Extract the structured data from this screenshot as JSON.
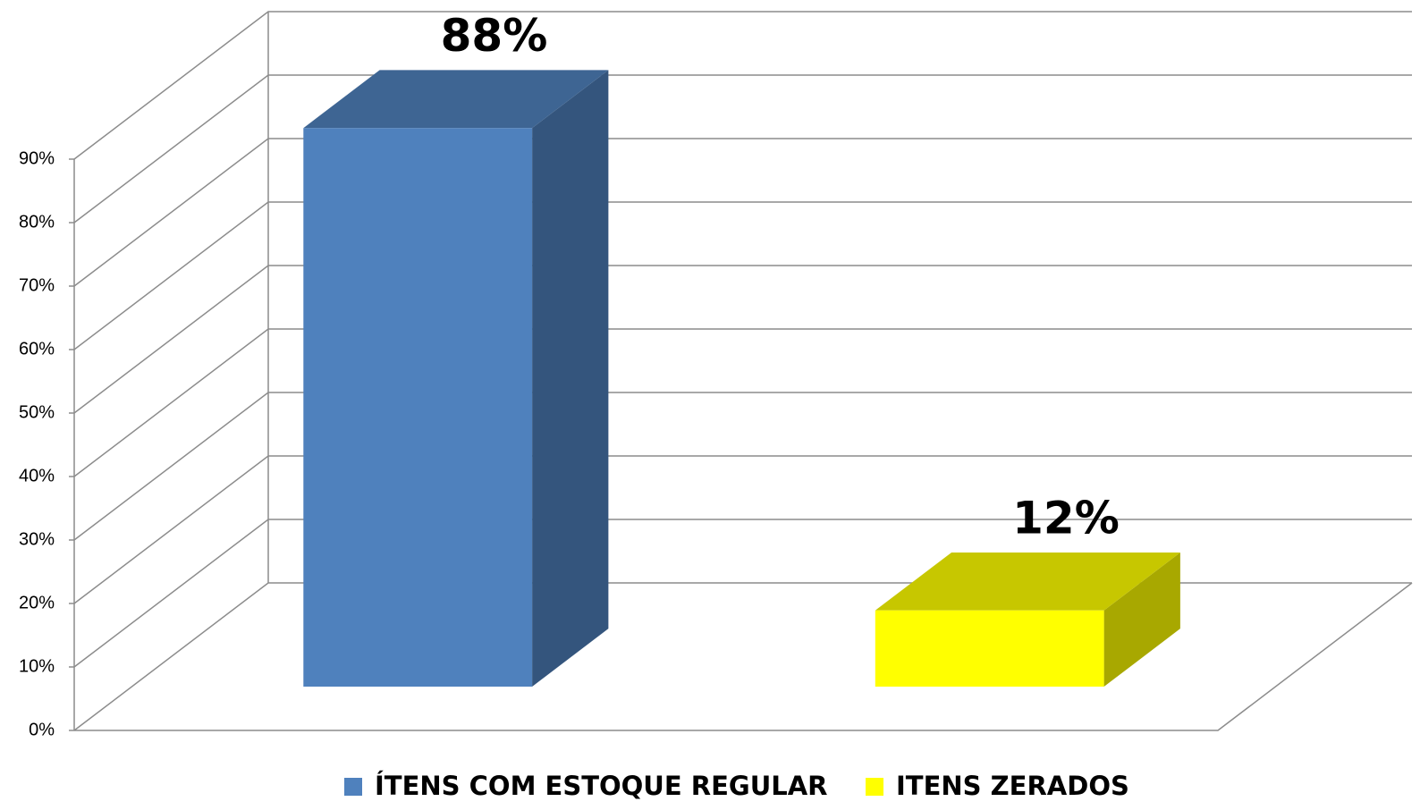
{
  "chart_data": {
    "type": "bar",
    "categories": [
      null
    ],
    "series": [
      {
        "name": "ÍTENS COM ESTOQUE REGULAR",
        "color": "#4f81bd",
        "values": [
          88
        ],
        "value_labels": [
          "88%"
        ]
      },
      {
        "name": "ITENS ZERADOS",
        "color": "#ffff00",
        "values": [
          12
        ],
        "value_labels": [
          "12%"
        ]
      }
    ],
    "ylim": [
      0,
      90
    ],
    "yticks": [
      {
        "value": 0,
        "label": "0%"
      },
      {
        "value": 10,
        "label": "10%"
      },
      {
        "value": 20,
        "label": "20%"
      },
      {
        "value": 30,
        "label": "30%"
      },
      {
        "value": 40,
        "label": "40%"
      },
      {
        "value": 50,
        "label": "50%"
      },
      {
        "value": 60,
        "label": "60%"
      },
      {
        "value": 70,
        "label": "70%"
      },
      {
        "value": 80,
        "label": "80%"
      },
      {
        "value": 90,
        "label": "90%"
      }
    ],
    "grid": true,
    "legend": "bottom"
  }
}
